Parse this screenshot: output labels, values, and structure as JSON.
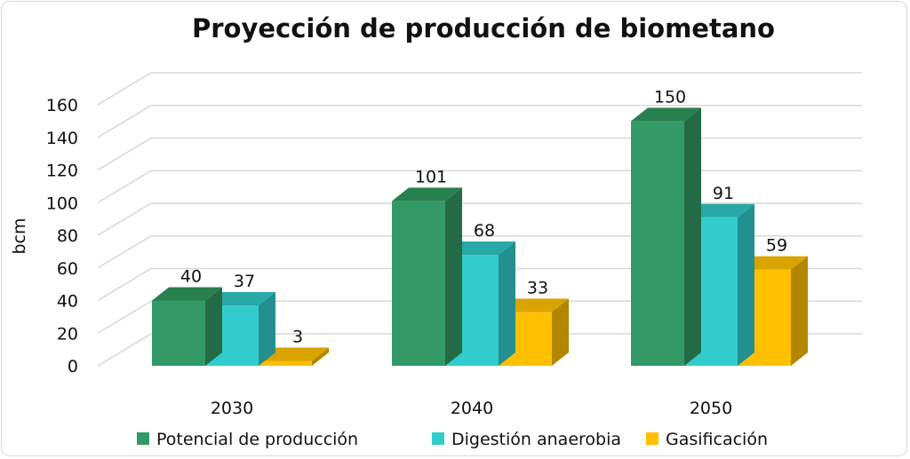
{
  "chart_data": {
    "type": "bar",
    "title": "Proyección de producción de biometano",
    "ylabel": "bcm",
    "xlabel": "",
    "ylim": [
      0,
      160
    ],
    "yticks": [
      0,
      20,
      40,
      60,
      80,
      100,
      120,
      140,
      160
    ],
    "categories": [
      "2030",
      "2040",
      "2050"
    ],
    "grid": true,
    "legend_position": "bottom",
    "series": [
      {
        "name": "Potencial de producción",
        "values": [
          40,
          101,
          150
        ],
        "color": "#339966",
        "side_color": "#236b47",
        "top_color": "#29804f"
      },
      {
        "name": "Digestión anaerobia",
        "values": [
          37,
          68,
          91
        ],
        "color": "#33cccc",
        "side_color": "#238f8f",
        "top_color": "#29a8a8"
      },
      {
        "name": "Gasificación",
        "values": [
          3,
          33,
          59
        ],
        "color": "#ffc000",
        "side_color": "#b38600",
        "top_color": "#d9a300"
      }
    ]
  }
}
